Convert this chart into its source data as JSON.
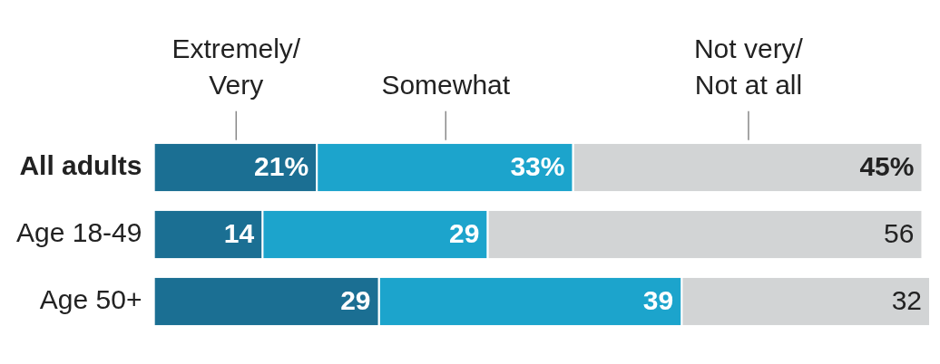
{
  "chart_data": {
    "type": "bar",
    "orientation": "horizontal",
    "stacked": true,
    "categories": [
      "All adults",
      "Age 18-49",
      "Age 50+"
    ],
    "series": [
      {
        "name": "Extremely/Very",
        "color": "#1b6f93",
        "values": [
          21,
          14,
          29
        ],
        "value_labels": [
          "21%",
          "14",
          "29"
        ]
      },
      {
        "name": "Somewhat",
        "color": "#1ca4cc",
        "values": [
          33,
          29,
          39
        ],
        "value_labels": [
          "33%",
          "29",
          "39"
        ]
      },
      {
        "name": "Not very/Not at all",
        "color": "#d2d4d5",
        "values": [
          45,
          56,
          32
        ],
        "value_labels": [
          "45%",
          "56",
          "32"
        ]
      }
    ],
    "xlim": [
      0,
      100
    ],
    "tick_labels": "y",
    "grid": false,
    "legend": "top"
  }
}
